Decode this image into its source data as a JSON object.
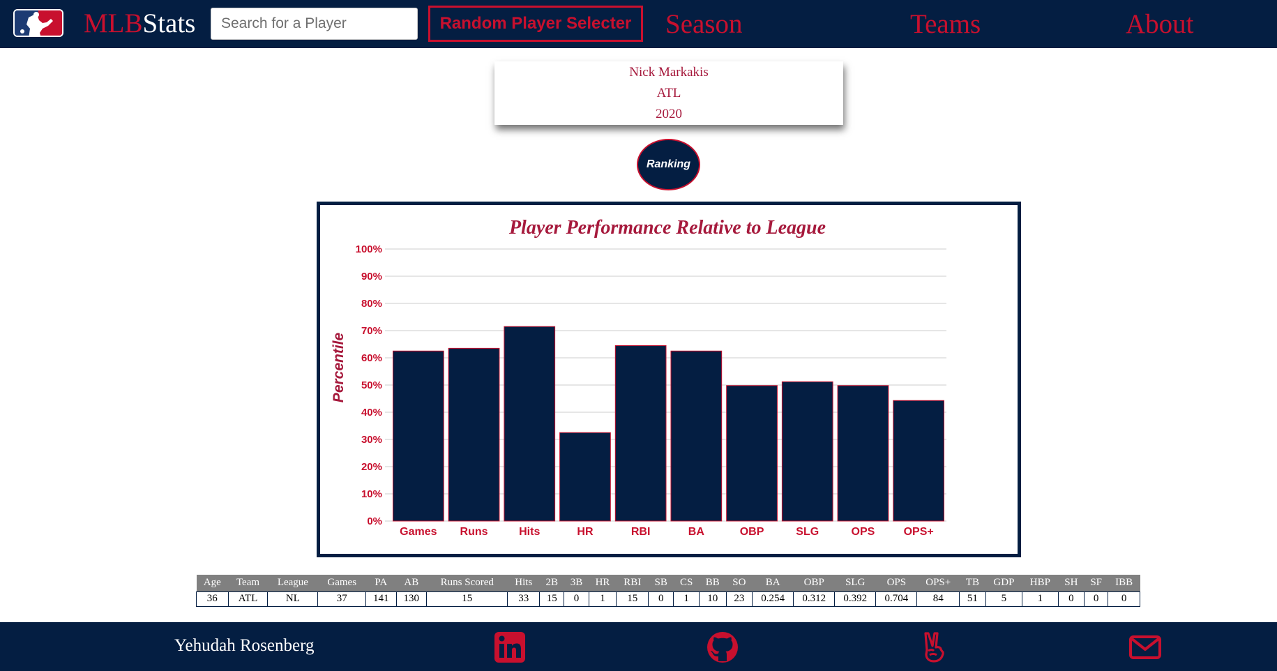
{
  "navbar": {
    "brand_part1": "MLB",
    "brand_part2": "Stats",
    "search_placeholder": "Search for a Player",
    "random_button_label": "Random Player Selecter",
    "links": [
      "Season",
      "Teams",
      "About"
    ]
  },
  "player": {
    "name": "Nick Markakis",
    "team": "ATL",
    "year": "2020"
  },
  "ranking_button_label": "Ranking",
  "colors": {
    "navy": "#041e42",
    "red": "#c8102e",
    "crimson_text": "#a6193c",
    "table_header": "#808080"
  },
  "chart_data": {
    "type": "bar",
    "title": "Player Performance Relative to League",
    "xlabel": "",
    "ylabel": "Percentile",
    "categories": [
      "Games",
      "Runs",
      "Hits",
      "HR",
      "RBI",
      "BA",
      "OBP",
      "SLG",
      "OPS",
      "OPS+"
    ],
    "values": [
      62.5,
      63.5,
      71.5,
      32.5,
      64.5,
      62.5,
      49.8,
      51.2,
      49.8,
      44.3
    ],
    "ylim": [
      0,
      100
    ],
    "yticks": [
      "0%",
      "10%",
      "20%",
      "30%",
      "40%",
      "50%",
      "60%",
      "70%",
      "80%",
      "90%",
      "100%"
    ],
    "grid": true,
    "legend": "none"
  },
  "stats_table": {
    "headers": [
      "Age",
      "Team",
      "League",
      "Games",
      "PA",
      "AB",
      "Runs Scored",
      "Hits",
      "2B",
      "3B",
      "HR",
      "RBI",
      "SB",
      "CS",
      "BB",
      "SO",
      "BA",
      "OBP",
      "SLG",
      "OPS",
      "OPS+",
      "TB",
      "GDP",
      "HBP",
      "SH",
      "SF",
      "IBB"
    ],
    "row": [
      "36",
      "ATL",
      "NL",
      "37",
      "141",
      "130",
      "15",
      "33",
      "15",
      "0",
      "1",
      "15",
      "0",
      "1",
      "10",
      "23",
      "0.254",
      "0.312",
      "0.392",
      "0.704",
      "84",
      "51",
      "5",
      "1",
      "0",
      "0",
      "0"
    ]
  },
  "footer": {
    "name": "Yehudah Rosenberg",
    "icons": [
      "linkedin-icon",
      "github-icon",
      "peace-hand-icon",
      "mail-icon"
    ]
  }
}
